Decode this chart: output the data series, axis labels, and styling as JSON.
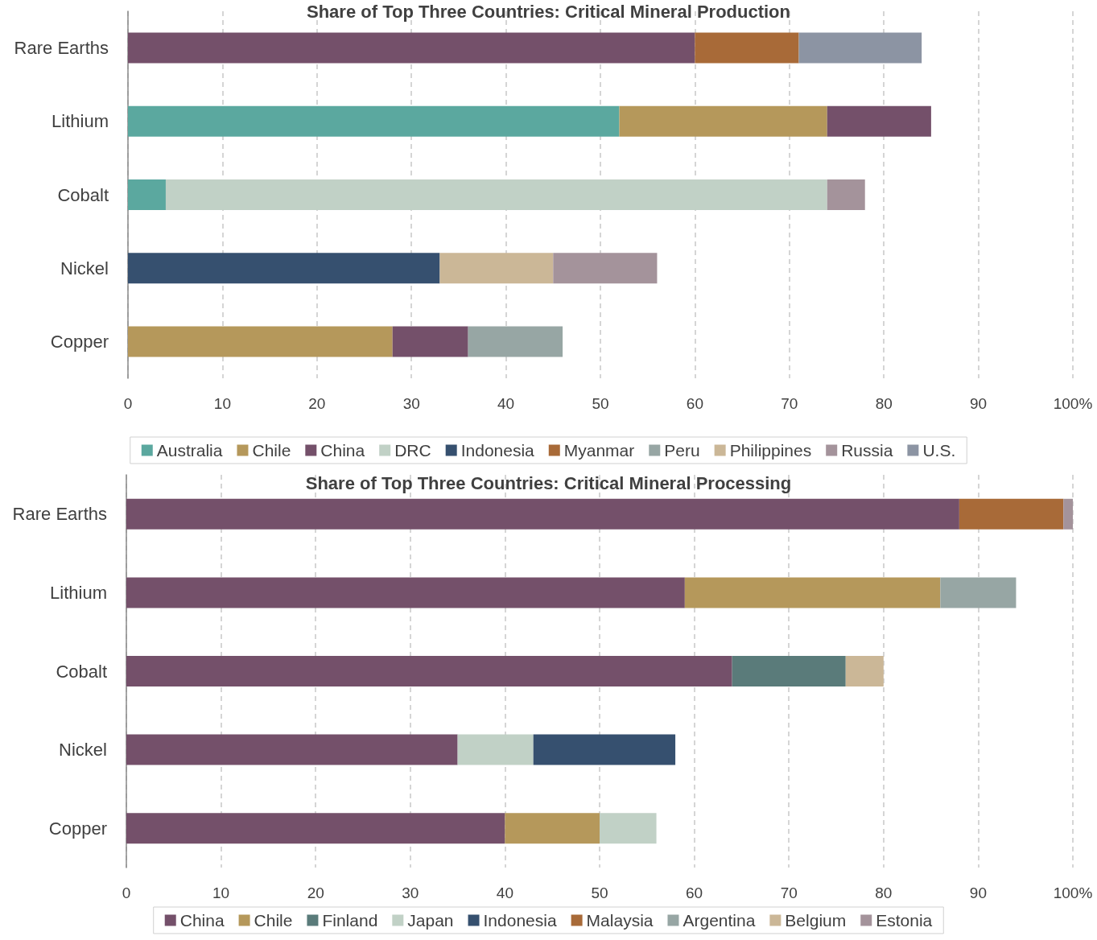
{
  "chart_data": [
    {
      "type": "bar",
      "title": "Share of Top Three Countries: Critical Mineral Production",
      "orientation": "horizontal",
      "stacked": true,
      "categories": [
        "Rare Earths",
        "Lithium",
        "Cobalt",
        "Nickel",
        "Copper"
      ],
      "series": [
        {
          "name": "Australia",
          "color": "#5ba89f",
          "values": [
            null,
            52,
            4,
            null,
            null
          ]
        },
        {
          "name": "Chile",
          "color": "#b5985b",
          "values": [
            null,
            22,
            null,
            null,
            28
          ]
        },
        {
          "name": "China",
          "color": "#74506a",
          "values": [
            60,
            11,
            null,
            null,
            8
          ]
        },
        {
          "name": "DRC",
          "color": "#c1d1c6",
          "values": [
            null,
            null,
            70,
            null,
            null
          ]
        },
        {
          "name": "Indonesia",
          "color": "#36506f",
          "values": [
            null,
            null,
            null,
            33,
            null
          ]
        },
        {
          "name": "Myanmar",
          "color": "#a86a38",
          "values": [
            11,
            null,
            null,
            null,
            null
          ]
        },
        {
          "name": "Peru",
          "color": "#97a6a4",
          "values": [
            null,
            null,
            null,
            null,
            10
          ]
        },
        {
          "name": "Philippines",
          "color": "#cbb797",
          "values": [
            null,
            null,
            null,
            12,
            null
          ]
        },
        {
          "name": "Russia",
          "color": "#a4939b",
          "values": [
            null,
            null,
            4,
            11,
            null
          ]
        },
        {
          "name": "U.S.",
          "color": "#8c94a3",
          "values": [
            13,
            null,
            null,
            null,
            null
          ]
        }
      ],
      "xlim": [
        0,
        100
      ],
      "xticks": [
        0,
        10,
        20,
        30,
        40,
        50,
        60,
        70,
        80,
        90,
        {
          "value": 100,
          "label": "100%"
        }
      ],
      "grid": "x",
      "legend": "bottom"
    },
    {
      "type": "bar",
      "title": "Share of Top Three Countries: Critical Mineral Processing",
      "orientation": "horizontal",
      "stacked": true,
      "categories": [
        "Rare Earths",
        "Lithium",
        "Cobalt",
        "Nickel",
        "Copper"
      ],
      "series": [
        {
          "name": "China",
          "color": "#74506a",
          "values": [
            88,
            59,
            64,
            35,
            40
          ]
        },
        {
          "name": "Chile",
          "color": "#b5985b",
          "values": [
            null,
            27,
            null,
            null,
            10
          ]
        },
        {
          "name": "Finland",
          "color": "#5a7b7a",
          "values": [
            null,
            null,
            12,
            null,
            null
          ]
        },
        {
          "name": "Japan",
          "color": "#c1d1c6",
          "values": [
            null,
            null,
            null,
            8,
            6
          ]
        },
        {
          "name": "Indonesia",
          "color": "#36506f",
          "values": [
            null,
            null,
            null,
            15,
            null
          ]
        },
        {
          "name": "Malaysia",
          "color": "#a86a38",
          "values": [
            11,
            null,
            null,
            null,
            null
          ]
        },
        {
          "name": "Argentina",
          "color": "#97a6a4",
          "values": [
            null,
            8,
            null,
            null,
            null
          ]
        },
        {
          "name": "Belgium",
          "color": "#cbb797",
          "values": [
            null,
            null,
            4,
            null,
            null
          ]
        },
        {
          "name": "Estonia",
          "color": "#a4939b",
          "values": [
            1,
            null,
            null,
            null,
            null
          ]
        }
      ],
      "xlim": [
        0,
        100
      ],
      "xticks": [
        0,
        10,
        20,
        30,
        40,
        50,
        60,
        70,
        80,
        90,
        {
          "value": 100,
          "label": "100%"
        }
      ],
      "grid": "x",
      "legend": "bottom"
    }
  ]
}
